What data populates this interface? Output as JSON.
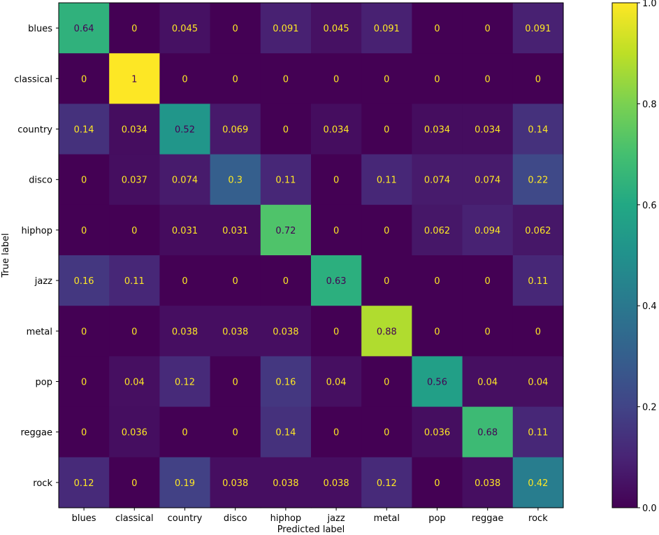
{
  "chart_data": {
    "type": "heatmap",
    "title": "",
    "xlabel": "Predicted label",
    "ylabel": "True label",
    "x_categories": [
      "blues",
      "classical",
      "country",
      "disco",
      "hiphop",
      "jazz",
      "metal",
      "pop",
      "reggae",
      "rock"
    ],
    "y_categories": [
      "blues",
      "classical",
      "country",
      "disco",
      "hiphop",
      "jazz",
      "metal",
      "pop",
      "reggae",
      "rock"
    ],
    "values": [
      [
        0.64,
        0,
        0.045,
        0,
        0.091,
        0.045,
        0.091,
        0,
        0,
        0.091
      ],
      [
        0,
        1,
        0,
        0,
        0,
        0,
        0,
        0,
        0,
        0
      ],
      [
        0.14,
        0.034,
        0.52,
        0.069,
        0,
        0.034,
        0,
        0.034,
        0.034,
        0.14
      ],
      [
        0,
        0.037,
        0.074,
        0.3,
        0.11,
        0,
        0.11,
        0.074,
        0.074,
        0.22
      ],
      [
        0,
        0,
        0.031,
        0.031,
        0.72,
        0,
        0,
        0.062,
        0.094,
        0.062
      ],
      [
        0.16,
        0.11,
        0,
        0,
        0,
        0.63,
        0,
        0,
        0,
        0.11
      ],
      [
        0,
        0,
        0.038,
        0.038,
        0.038,
        0,
        0.88,
        0,
        0,
        0
      ],
      [
        0,
        0.04,
        0.12,
        0,
        0.16,
        0.04,
        0,
        0.56,
        0.04,
        0.04
      ],
      [
        0,
        0.036,
        0,
        0,
        0.14,
        0,
        0,
        0.036,
        0.68,
        0.11
      ],
      [
        0.12,
        0,
        0.19,
        0.038,
        0.038,
        0.038,
        0.12,
        0,
        0.038,
        0.42
      ]
    ],
    "value_labels": [
      [
        "0.64",
        "0",
        "0.045",
        "0",
        "0.091",
        "0.045",
        "0.091",
        "0",
        "0",
        "0.091"
      ],
      [
        "0",
        "1",
        "0",
        "0",
        "0",
        "0",
        "0",
        "0",
        "0",
        "0"
      ],
      [
        "0.14",
        "0.034",
        "0.52",
        "0.069",
        "0",
        "0.034",
        "0",
        "0.034",
        "0.034",
        "0.14"
      ],
      [
        "0",
        "0.037",
        "0.074",
        "0.3",
        "0.11",
        "0",
        "0.11",
        "0.074",
        "0.074",
        "0.22"
      ],
      [
        "0",
        "0",
        "0.031",
        "0.031",
        "0.72",
        "0",
        "0",
        "0.062",
        "0.094",
        "0.062"
      ],
      [
        "0.16",
        "0.11",
        "0",
        "0",
        "0",
        "0.63",
        "0",
        "0",
        "0",
        "0.11"
      ],
      [
        "0",
        "0",
        "0.038",
        "0.038",
        "0.038",
        "0",
        "0.88",
        "0",
        "0",
        "0"
      ],
      [
        "0",
        "0.04",
        "0.12",
        "0",
        "0.16",
        "0.04",
        "0",
        "0.56",
        "0.04",
        "0.04"
      ],
      [
        "0",
        "0.036",
        "0",
        "0",
        "0.14",
        "0",
        "0",
        "0.036",
        "0.68",
        "0.11"
      ],
      [
        "0.12",
        "0",
        "0.19",
        "0.038",
        "0.038",
        "0.038",
        "0.12",
        "0",
        "0.038",
        "0.42"
      ]
    ],
    "colorbar": {
      "range": [
        0,
        1
      ],
      "ticks": [
        0,
        0.2,
        0.4,
        0.6,
        0.8,
        1
      ],
      "tick_labels": [
        "0.0",
        "0.2",
        "0.4",
        "0.6",
        "0.8",
        "1.0"
      ],
      "colormap": "viridis"
    },
    "text_colors": {
      "light": "#fde725",
      "dark": "#440154"
    },
    "grid": false,
    "legend": "colorbar-right"
  }
}
